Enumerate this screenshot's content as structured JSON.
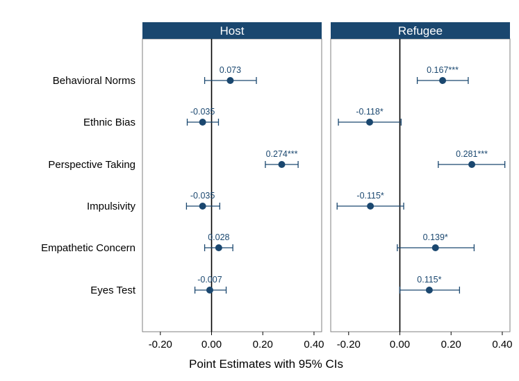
{
  "chart_data": {
    "type": "scatter",
    "subtype": "coefficient-plot",
    "xlabel": "Point Estimates with 95% CIs",
    "xlim": [
      -0.27,
      0.43
    ],
    "xticks": [
      -0.2,
      0.0,
      0.2,
      0.4
    ],
    "xtick_labels": [
      "-0.20",
      "0.00",
      "0.20",
      "0.40"
    ],
    "reference_line": 0,
    "grid": false,
    "marker_color": "#1a476f",
    "strip_color": "#1a476f",
    "categories": [
      "Behavioral Norms",
      "Ethnic Bias",
      "Perspective Taking",
      "Impulsivity",
      "Empathetic Concern",
      "Eyes Test"
    ],
    "panels": [
      {
        "name": "Host",
        "estimates": [
          {
            "category": "Behavioral Norms",
            "value": 0.073,
            "ci": [
              -0.027,
              0.175
            ],
            "label": "0.073"
          },
          {
            "category": "Ethnic Bias",
            "value": -0.035,
            "ci": [
              -0.095,
              0.027
            ],
            "label": "-0.035"
          },
          {
            "category": "Perspective Taking",
            "value": 0.274,
            "ci": [
              0.21,
              0.338
            ],
            "label": "0.274***"
          },
          {
            "category": "Impulsivity",
            "value": -0.035,
            "ci": [
              -0.098,
              0.032
            ],
            "label": "-0.035"
          },
          {
            "category": "Empathetic Concern",
            "value": 0.028,
            "ci": [
              -0.027,
              0.083
            ],
            "label": "0.028"
          },
          {
            "category": "Eyes Test",
            "value": -0.007,
            "ci": [
              -0.065,
              0.057
            ],
            "label": "-0.007"
          }
        ]
      },
      {
        "name": "Refugee",
        "estimates": [
          {
            "category": "Behavioral Norms",
            "value": 0.167,
            "ci": [
              0.068,
              0.267
            ],
            "label": "0.167***"
          },
          {
            "category": "Ethnic Bias",
            "value": -0.118,
            "ci": [
              -0.24,
              0.005
            ],
            "label": "-0.118*"
          },
          {
            "category": "Perspective Taking",
            "value": 0.281,
            "ci": [
              0.15,
              0.41
            ],
            "label": "0.281***"
          },
          {
            "category": "Impulsivity",
            "value": -0.115,
            "ci": [
              -0.245,
              0.015
            ],
            "label": "-0.115*"
          },
          {
            "category": "Empathetic Concern",
            "value": 0.139,
            "ci": [
              -0.01,
              0.29
            ],
            "label": "0.139*"
          },
          {
            "category": "Eyes Test",
            "value": 0.115,
            "ci": [
              0.0,
              0.233
            ],
            "label": "0.115*"
          }
        ]
      }
    ]
  }
}
